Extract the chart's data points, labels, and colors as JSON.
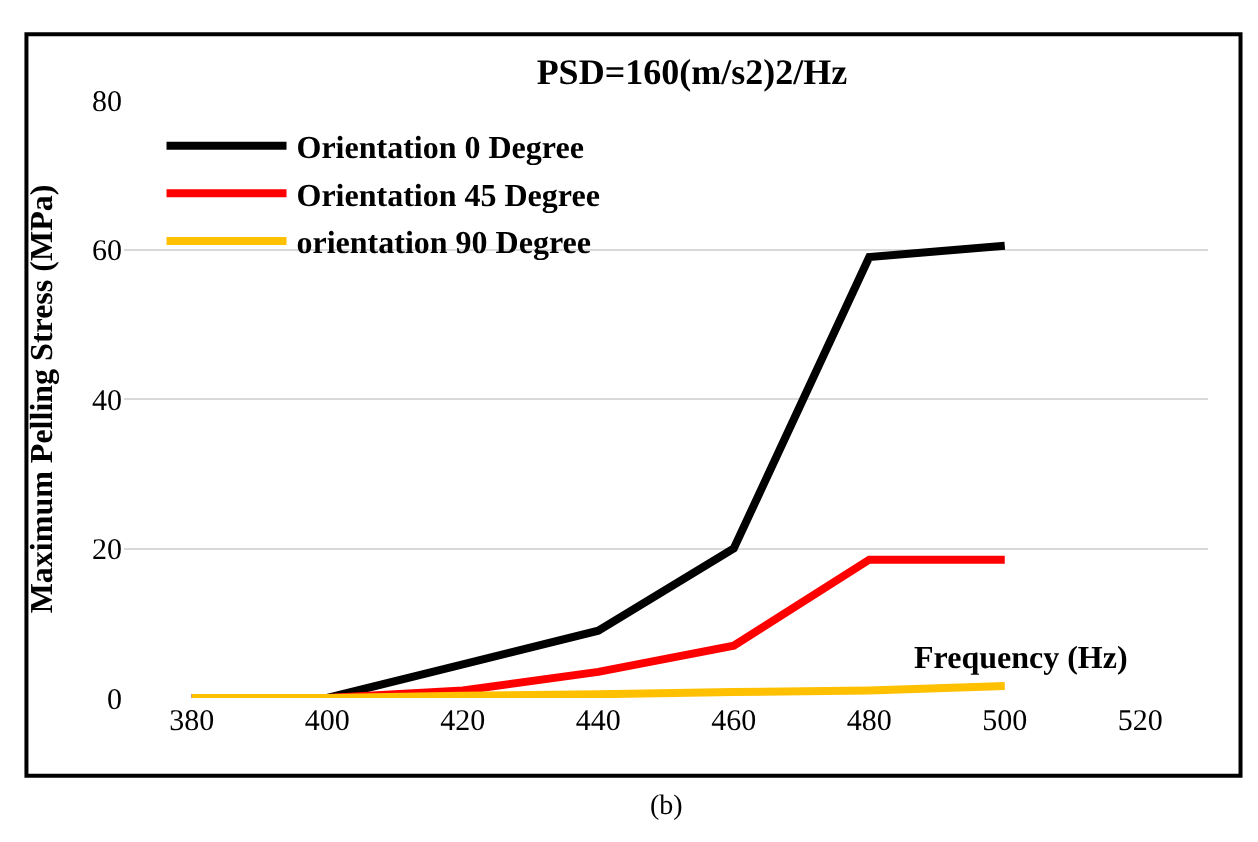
{
  "chart_data": {
    "type": "line",
    "title": "PSD=160(m/s2)2/Hz",
    "xlabel": "Frequency (Hz)",
    "ylabel": "Maximum Pelling Stress (MPa)",
    "x": [
      380,
      400,
      420,
      440,
      460,
      480,
      500
    ],
    "series": [
      {
        "name": "Orientation 0 Degree",
        "color": "#000000",
        "values": [
          0,
          0,
          4.5,
          9,
          20,
          59,
          60.5
        ]
      },
      {
        "name": "Orientation 45 Degree",
        "color": "#ff0000",
        "values": [
          0,
          0,
          1,
          3.5,
          7,
          18.5,
          18.5
        ]
      },
      {
        "name": "orientation 90 Degree",
        "color": "#ffc000",
        "values": [
          0,
          0,
          0.3,
          0.5,
          0.8,
          1,
          1.6
        ]
      }
    ],
    "xlim": [
      370,
      530
    ],
    "xticks": [
      380,
      400,
      420,
      440,
      460,
      480,
      500,
      520
    ],
    "ylim": [
      0,
      80
    ],
    "yticks": [
      0,
      20,
      40,
      60,
      80
    ],
    "grid": "y",
    "legend": "top left",
    "marker": "none",
    "line_style": "solid",
    "annotations": [
      "(b)"
    ]
  }
}
